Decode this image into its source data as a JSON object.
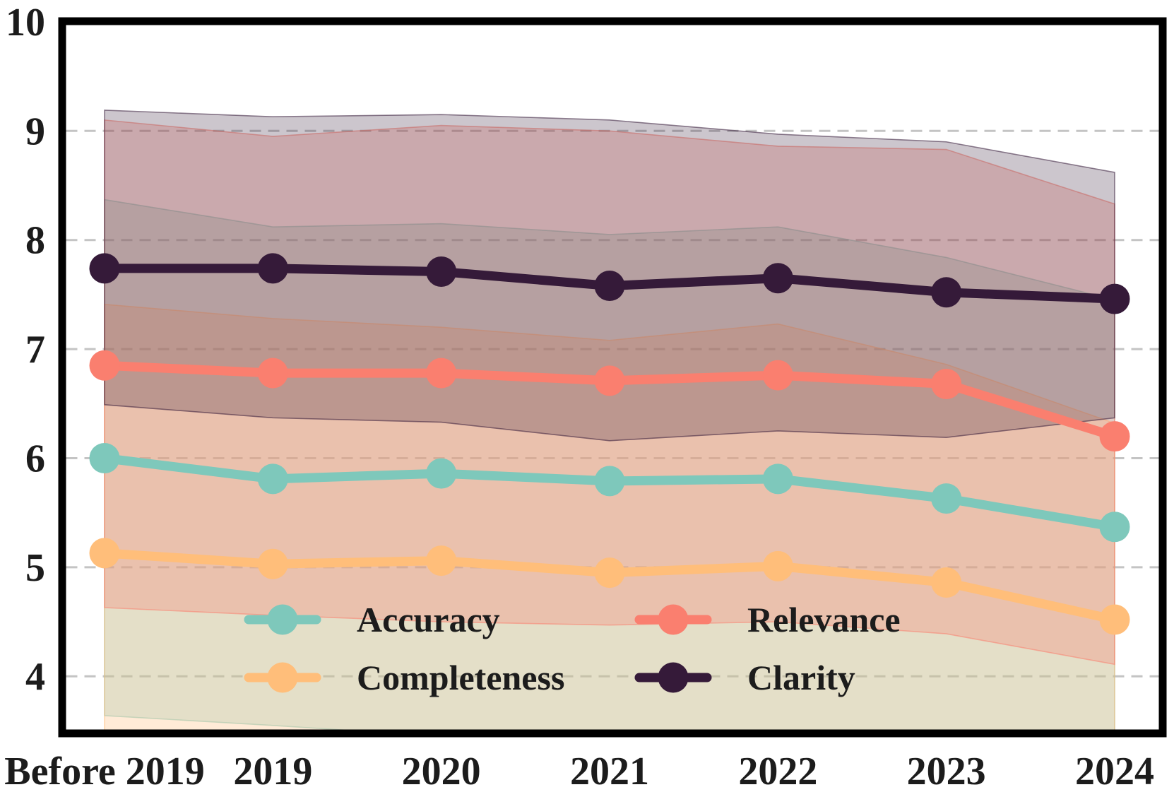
{
  "chart_data": {
    "type": "line",
    "title": "",
    "xlabel": "",
    "ylabel": "",
    "categories": [
      "Before 2019",
      "2019",
      "2020",
      "2021",
      "2022",
      "2023",
      "2024"
    ],
    "series": [
      {
        "name": "Accuracy",
        "color": "#7EC8BB",
        "values": [
          6.0,
          5.81,
          5.86,
          5.79,
          5.81,
          5.63,
          5.37
        ],
        "band_upper": [
          8.37,
          8.12,
          8.15,
          8.05,
          8.12,
          7.84,
          7.45
        ],
        "band_lower": [
          3.64,
          3.55,
          3.45,
          3.38,
          3.33,
          3.25,
          3.15
        ],
        "band_alpha": 0.3
      },
      {
        "name": "Relevance",
        "color": "#FA7F6F",
        "values": [
          6.85,
          6.78,
          6.78,
          6.71,
          6.76,
          6.68,
          6.2
        ],
        "band_upper": [
          9.1,
          8.95,
          9.05,
          9.0,
          8.86,
          8.83,
          8.33
        ],
        "band_lower": [
          4.63,
          4.56,
          4.5,
          4.47,
          4.5,
          4.39,
          4.11
        ],
        "band_alpha": 0.3
      },
      {
        "name": "Completeness",
        "color": "#FFBE7A",
        "values": [
          5.13,
          5.03,
          5.06,
          4.95,
          5.01,
          4.86,
          4.52
        ],
        "band_upper": [
          7.41,
          7.28,
          7.2,
          7.08,
          7.23,
          6.86,
          6.32
        ],
        "band_lower": [
          3.42,
          3.38,
          3.32,
          3.28,
          3.22,
          3.1,
          2.95
        ],
        "band_alpha": 0.3
      },
      {
        "name": "Clarity",
        "color": "#351A39",
        "values": [
          7.74,
          7.74,
          7.71,
          7.58,
          7.65,
          7.52,
          7.46
        ],
        "band_upper": [
          9.19,
          9.13,
          9.15,
          9.1,
          8.97,
          8.9,
          8.62
        ],
        "band_lower": [
          6.49,
          6.37,
          6.33,
          6.16,
          6.25,
          6.19,
          6.37
        ],
        "band_alpha": 0.25
      }
    ],
    "band_draw_order": [
      "Accuracy",
      "Completeness",
      "Relevance",
      "Clarity"
    ],
    "ylim": [
      3.5,
      10
    ],
    "yticks": [
      4,
      5,
      6,
      7,
      8,
      9,
      10
    ],
    "ytick_labels": [
      "4",
      "5",
      "6",
      "7",
      "8",
      "9",
      "10"
    ],
    "grid": "horizontal-dashed",
    "gridline_color": "#c4c4c4",
    "axis_frame_color": "#000000",
    "legend": {
      "position": "lower-center-inside",
      "columns": 2,
      "order": [
        "Accuracy",
        "Relevance",
        "Completeness",
        "Clarity"
      ]
    }
  }
}
